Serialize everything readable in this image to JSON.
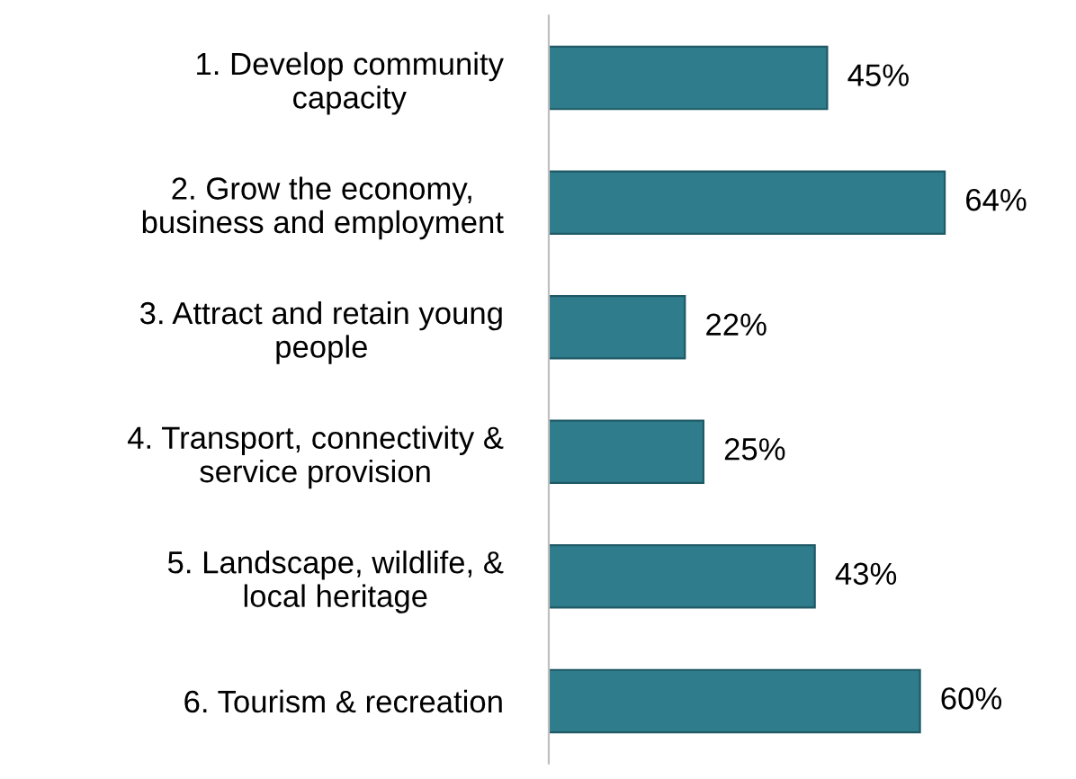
{
  "chart_data": {
    "type": "bar",
    "orientation": "horizontal",
    "categories": [
      "1. Develop community\ncapacity",
      "2. Grow the economy,\nbusiness and employment",
      "3. Attract and retain young\npeople",
      "4. Transport, connectivity &\nservice provision",
      "5. Landscape, wildlife, &\nlocal heritage",
      "6. Tourism & recreation"
    ],
    "values": [
      45,
      64,
      22,
      25,
      43,
      60
    ],
    "value_labels": [
      "45%",
      "64%",
      "22%",
      "25%",
      "43%",
      "60%"
    ],
    "color": "#2f7c8c"
  }
}
